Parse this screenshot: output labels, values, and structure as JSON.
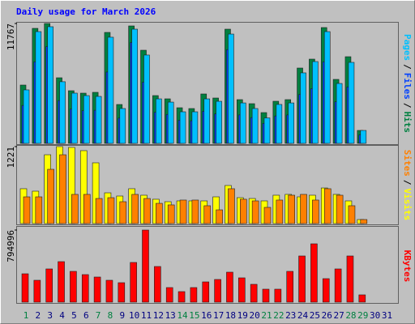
{
  "chart_data": [
    {
      "type": "bar",
      "title": "Daily usage for March 2026",
      "ylim": [
        0,
        11767
      ],
      "yticks": [
        11767
      ],
      "legend_separator": "/",
      "series": [
        {
          "name": "Hits",
          "color": "#008040",
          "values": [
            5724,
            11290,
            11767,
            6440,
            5168,
            4929,
            5009,
            10892,
            3816,
            11528,
            9143,
            4691,
            4373,
            3498,
            3419,
            4850,
            4452,
            11210,
            4293,
            3896,
            3021,
            4134,
            4293,
            7394,
            8268,
            11369,
            6281,
            8507,
            1272,
            0,
            0
          ]
        },
        {
          "name": "Files",
          "color": "#0040ff",
          "values": [
            3720,
            8000,
            9500,
            4200,
            3360,
            3200,
            3250,
            7000,
            2480,
            9900,
            6000,
            3050,
            2840,
            2270,
            2220,
            3150,
            2890,
            9200,
            2790,
            2530,
            1960,
            2690,
            2790,
            4800,
            5370,
            8000,
            4080,
            5530,
            830,
            0,
            0
          ]
        },
        {
          "name": "Pages",
          "color": "#00c0ff",
          "values": [
            5250,
            10970,
            11450,
            6050,
            4930,
            4690,
            4610,
            10420,
            3420,
            11210,
            8670,
            4370,
            4050,
            3100,
            3100,
            4370,
            4130,
            10730,
            3970,
            3420,
            2500,
            3820,
            3970,
            6920,
            8030,
            10970,
            5880,
            7950,
            1270,
            0,
            0
          ]
        }
      ]
    },
    {
      "type": "bar",
      "ylim": [
        0,
        1221
      ],
      "yticks": [
        1221
      ],
      "legend_separator": "/",
      "series": [
        {
          "name": "Visits",
          "color": "#ffff00",
          "values": [
            553,
            514,
            1092,
            1221,
            1208,
            1157,
            964,
            488,
            437,
            553,
            450,
            386,
            347,
            360,
            360,
            360,
            424,
            604,
            411,
            398,
            360,
            450,
            463,
            424,
            450,
            565,
            463,
            360,
            64,
            0,
            0
          ]
        },
        {
          "name": "Sites",
          "color": "#ff8000",
          "values": [
            424,
            424,
            861,
            1092,
            463,
            463,
            398,
            411,
            347,
            463,
            398,
            321,
            296,
            373,
            373,
            283,
            218,
            553,
            386,
            360,
            257,
            373,
            450,
            463,
            373,
            553,
            450,
            283,
            64,
            0,
            0
          ]
        }
      ]
    },
    {
      "type": "bar",
      "ylim": [
        0,
        794996
      ],
      "yticks": [
        794996
      ],
      "categories": [
        "1",
        "2",
        "3",
        "4",
        "5",
        "6",
        "7",
        "8",
        "9",
        "10",
        "11",
        "12",
        "13",
        "14",
        "15",
        "16",
        "17",
        "18",
        "19",
        "20",
        "21",
        "22",
        "23",
        "24",
        "25",
        "26",
        "27",
        "28",
        "29",
        "30",
        "31"
      ],
      "weekend_days": [
        "1",
        "7",
        "8",
        "14",
        "15",
        "21",
        "22",
        "28",
        "29"
      ],
      "weekend_color": "#008040",
      "weekday_color": "#000080",
      "series": [
        {
          "name": "KBytes",
          "color": "#ff0000",
          "values": [
            312650,
            241190,
            366250,
            446650,
            339450,
            303720,
            276920,
            241190,
            214390,
            437720,
            794996,
            393050,
            160790,
            116130,
            160790,
            223330,
            250120,
            330520,
            268000,
            196530,
            142930,
            142930,
            339450,
            509180,
            643180,
            259060,
            366250,
            509180,
            80400,
            0,
            0
          ]
        }
      ]
    }
  ]
}
